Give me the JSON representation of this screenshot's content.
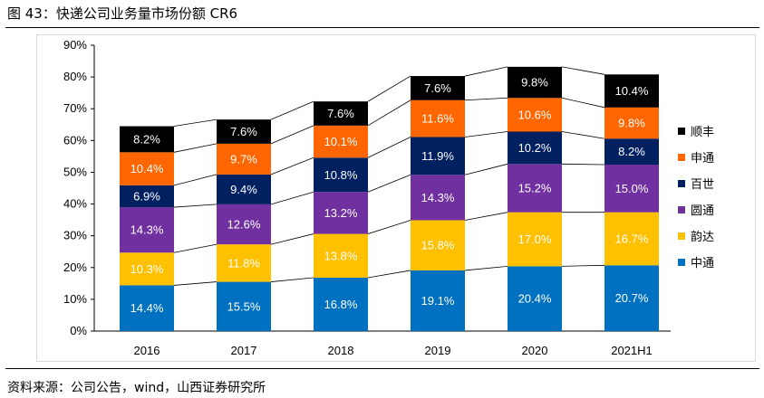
{
  "figure": {
    "title": "图 43：快递公司业务量市场份额 CR6",
    "source": "资料来源：公司公告，wind，山西证券研究所"
  },
  "chart_data": {
    "type": "bar",
    "stacked": true,
    "categories": [
      "2016",
      "2017",
      "2018",
      "2019",
      "2020",
      "2021H1"
    ],
    "ylim": [
      0,
      90
    ],
    "yticks": [
      "0%",
      "10%",
      "20%",
      "30%",
      "40%",
      "50%",
      "60%",
      "70%",
      "80%",
      "90%"
    ],
    "unit": "%",
    "grid": false,
    "legend_position": "right",
    "series": [
      {
        "name": "中通",
        "color": "#0070C0",
        "label_color": "#ffffff",
        "values": [
          14.4,
          15.5,
          16.8,
          19.1,
          20.4,
          20.7
        ]
      },
      {
        "name": "韵达",
        "color": "#FFC000",
        "label_color": "#ffffff",
        "values": [
          10.3,
          11.8,
          13.8,
          15.8,
          17.0,
          16.7
        ]
      },
      {
        "name": "圆通",
        "color": "#7030A0",
        "label_color": "#ffffff",
        "values": [
          14.3,
          12.6,
          13.2,
          14.3,
          15.2,
          15.0
        ]
      },
      {
        "name": "百世",
        "color": "#002060",
        "label_color": "#ffffff",
        "values": [
          6.9,
          9.4,
          10.8,
          11.9,
          10.2,
          8.2
        ]
      },
      {
        "name": "申通",
        "color": "#FF6600",
        "label_color": "#ffffff",
        "values": [
          10.4,
          9.7,
          10.1,
          11.6,
          10.6,
          9.8
        ]
      },
      {
        "name": "顺丰",
        "color": "#000000",
        "label_color": "#ffffff",
        "values": [
          8.2,
          7.6,
          7.6,
          7.6,
          9.8,
          10.4
        ]
      }
    ],
    "legend_order": [
      "顺丰",
      "申通",
      "百世",
      "圆通",
      "韵达",
      "中通"
    ]
  }
}
